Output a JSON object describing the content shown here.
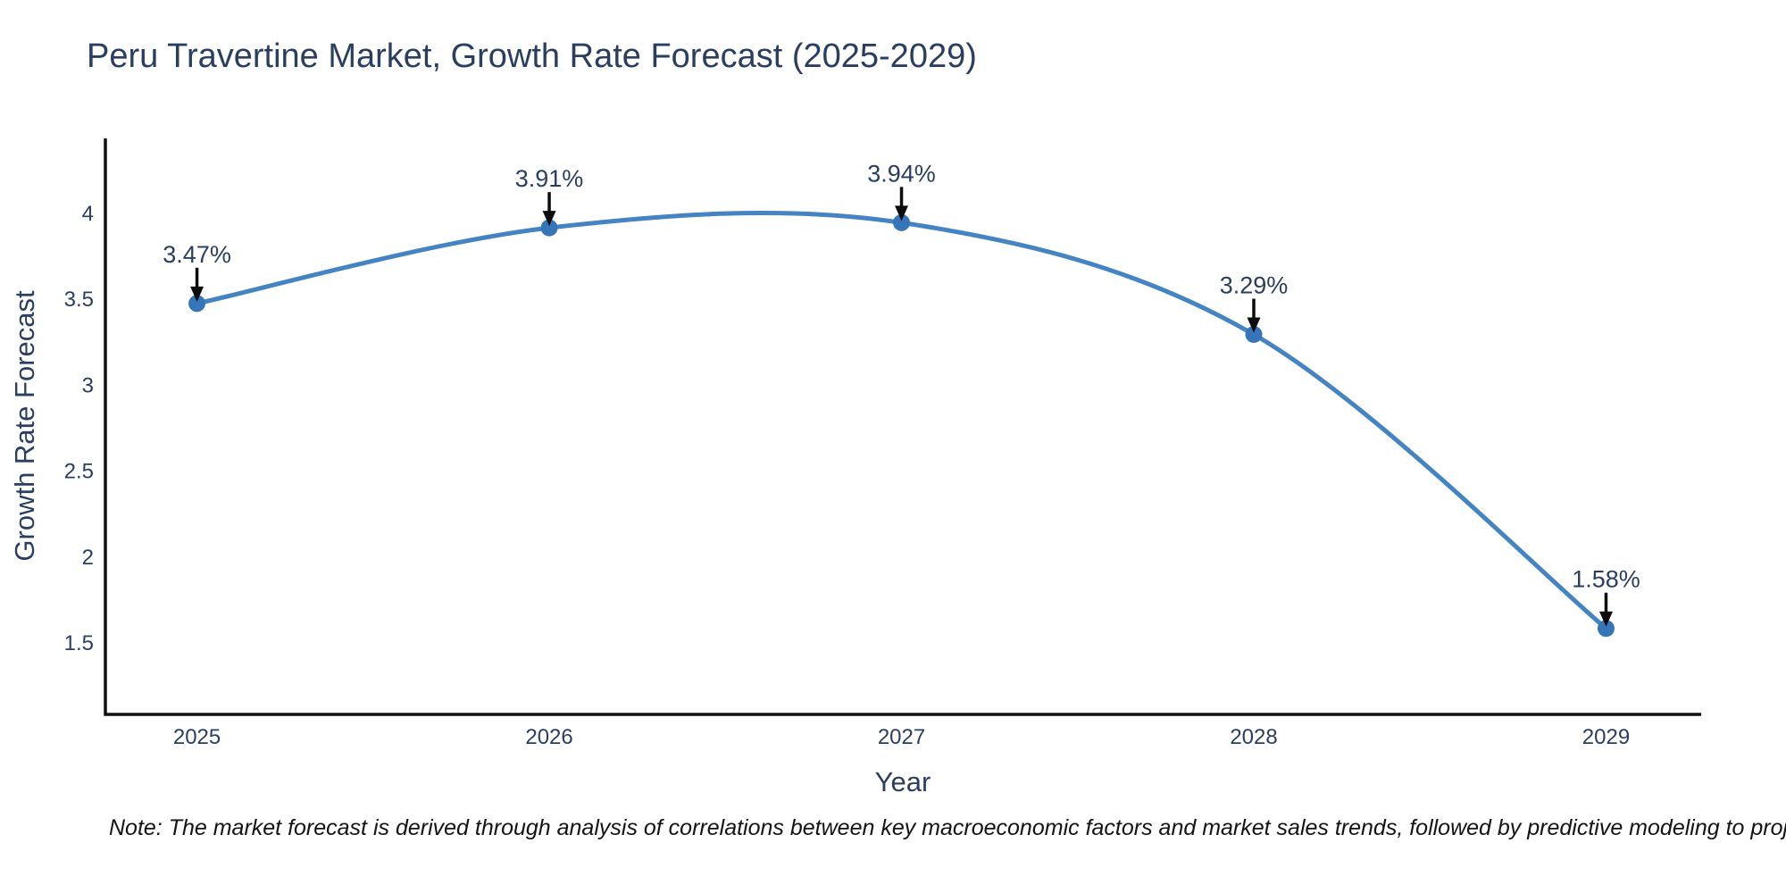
{
  "note": "Note: The market forecast is derived through analysis of correlations between key macroeconomic factors and market sales trends, followed by predictive modeling to project future sales",
  "chart_data": {
    "type": "line",
    "title": "Peru Travertine Market, Growth Rate Forecast (2025-2029)",
    "xlabel": "Year",
    "ylabel": "Growth Rate Forecast",
    "x": [
      2025,
      2026,
      2027,
      2028,
      2029
    ],
    "x_tick_labels": [
      "2025",
      "2026",
      "2027",
      "2028",
      "2029"
    ],
    "series": [
      {
        "name": "Growth Rate Forecast",
        "values": [
          3.47,
          3.91,
          3.94,
          3.29,
          1.58
        ]
      }
    ],
    "point_labels": [
      "3.47%",
      "3.91%",
      "3.94%",
      "3.29%",
      "1.58%"
    ],
    "yticks": [
      1.5,
      2,
      2.5,
      3,
      3.5,
      4
    ],
    "ylim": [
      1.08,
      4.43
    ],
    "xlim": [
      2024.74,
      2029.27
    ],
    "curve": "spline",
    "grid": false,
    "legend_position": "none",
    "annotations_style": "value-above-with-down-arrow",
    "colors": {
      "line": "#4484c2",
      "marker": "#3575b8",
      "text": "#2a3f5f",
      "axis": "#111111",
      "arrow": "#0d0d0d",
      "note_text": "#141414",
      "background": "#ffffff"
    }
  }
}
